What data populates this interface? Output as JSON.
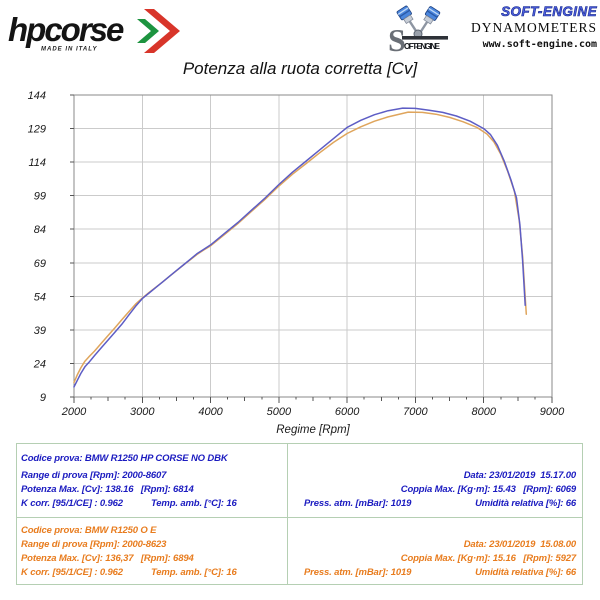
{
  "branding": {
    "hp_corse": {
      "name": "hpcorse",
      "tagline": "MADE IN ITALY"
    },
    "soft_engine": {
      "brand": "SOFT-ENGINE",
      "subtitle": "DYNAMOMETERS",
      "website": "www.soft-engine.com",
      "emblem_text": "OFT-ENGINE"
    }
  },
  "chart_data": {
    "type": "line",
    "title": "Potenza alla ruota corretta [Cv]",
    "xlabel": "Regime [Rpm]",
    "ylabel": "",
    "xlim": [
      2000,
      9000
    ],
    "ylim": [
      9,
      144
    ],
    "x_ticks": [
      2000,
      3000,
      4000,
      5000,
      6000,
      7000,
      8000,
      9000
    ],
    "y_ticks": [
      9,
      24,
      39,
      54,
      69,
      84,
      99,
      114,
      129,
      144
    ],
    "grid": true,
    "legend": false,
    "series": [
      {
        "name": "BMW R1250 HP CORSE NO DBK",
        "color": "#5d5dc5",
        "max_power_cv": 138.16,
        "max_power_rpm": 6814,
        "points": [
          [
            2000,
            13.5
          ],
          [
            2050,
            16.5
          ],
          [
            2100,
            19.5
          ],
          [
            2160,
            22.5
          ],
          [
            2220,
            24.5
          ],
          [
            2300,
            27.5
          ],
          [
            2400,
            31
          ],
          [
            2500,
            34.5
          ],
          [
            2600,
            38
          ],
          [
            2700,
            41.5
          ],
          [
            2800,
            45.5
          ],
          [
            2900,
            49.5
          ],
          [
            3000,
            53
          ],
          [
            3100,
            55.5
          ],
          [
            3200,
            58
          ],
          [
            3300,
            60.5
          ],
          [
            3400,
            63
          ],
          [
            3500,
            65.5
          ],
          [
            3600,
            68
          ],
          [
            3700,
            70.5
          ],
          [
            3800,
            73
          ],
          [
            3900,
            75
          ],
          [
            4000,
            77
          ],
          [
            4200,
            82
          ],
          [
            4400,
            87
          ],
          [
            4600,
            92.5
          ],
          [
            4800,
            98
          ],
          [
            5000,
            104
          ],
          [
            5200,
            109.5
          ],
          [
            5400,
            114.5
          ],
          [
            5600,
            119.5
          ],
          [
            5800,
            124.5
          ],
          [
            6000,
            129.5
          ],
          [
            6200,
            132.7
          ],
          [
            6400,
            135.2
          ],
          [
            6600,
            137
          ],
          [
            6814,
            138.16
          ],
          [
            7000,
            138
          ],
          [
            7200,
            137.2
          ],
          [
            7400,
            136.2
          ],
          [
            7600,
            134.6
          ],
          [
            7800,
            132.3
          ],
          [
            8000,
            129
          ],
          [
            8100,
            126.3
          ],
          [
            8200,
            121.5
          ],
          [
            8300,
            114.5
          ],
          [
            8400,
            106
          ],
          [
            8480,
            98
          ],
          [
            8530,
            86
          ],
          [
            8570,
            70
          ],
          [
            8607,
            50
          ]
        ]
      },
      {
        "name": "BMW R1250 O E",
        "color": "#dfa55c",
        "max_power_cv": 136.37,
        "max_power_rpm": 6894,
        "points": [
          [
            2000,
            15.5
          ],
          [
            2050,
            19
          ],
          [
            2100,
            22
          ],
          [
            2160,
            25
          ],
          [
            2220,
            27
          ],
          [
            2300,
            29.5
          ],
          [
            2400,
            33
          ],
          [
            2500,
            36.5
          ],
          [
            2600,
            40
          ],
          [
            2700,
            43.5
          ],
          [
            2800,
            47
          ],
          [
            2900,
            50.5
          ],
          [
            3000,
            53.2
          ],
          [
            3100,
            55.7
          ],
          [
            3200,
            58.1
          ],
          [
            3300,
            60.5
          ],
          [
            3400,
            63
          ],
          [
            3500,
            65.4
          ],
          [
            3600,
            67.9
          ],
          [
            3700,
            70.3
          ],
          [
            3800,
            72.7
          ],
          [
            3900,
            74.7
          ],
          [
            4000,
            76.6
          ],
          [
            4200,
            81.5
          ],
          [
            4400,
            86.5
          ],
          [
            4600,
            92
          ],
          [
            4800,
            97.4
          ],
          [
            5000,
            103.3
          ],
          [
            5200,
            108.6
          ],
          [
            5400,
            113.4
          ],
          [
            5600,
            118.2
          ],
          [
            5800,
            122.8
          ],
          [
            6000,
            126.8
          ],
          [
            6200,
            129.8
          ],
          [
            6400,
            132.3
          ],
          [
            6600,
            134.2
          ],
          [
            6894,
            136.37
          ],
          [
            7100,
            136.2
          ],
          [
            7300,
            135.4
          ],
          [
            7500,
            134
          ],
          [
            7700,
            132
          ],
          [
            7900,
            129.5
          ],
          [
            8050,
            126.5
          ],
          [
            8150,
            123
          ],
          [
            8250,
            117.5
          ],
          [
            8350,
            110
          ],
          [
            8450,
            101
          ],
          [
            8520,
            88
          ],
          [
            8570,
            72
          ],
          [
            8623,
            46
          ]
        ]
      }
    ]
  },
  "tables": [
    {
      "codice": "Codice prova: BMW R1250 HP CORSE NO DBK",
      "range": "Range di prova [Rpm]: 2000-8607",
      "potenza": "Potenza Max. [Cv]: 138.16   [Rpm]: 6814",
      "kcorr": "K corr. [95/1/CE] : 0.962",
      "temp": "Temp. amb. [°C]: 16",
      "data": "Data: 23/01/2019  15.17.00",
      "coppia": "Coppia Max. [Kg·m]: 15.43   [Rpm]: 6069",
      "press": "Press. atm. [mBar]: 1019",
      "umidita": "Umidità relativa [%]: 66"
    },
    {
      "codice": "Codice prova: BMW R1250 O E",
      "range": "Range di prova [Rpm]: 2000-8623",
      "potenza": "Potenza Max. [Cv]: 136,37   [Rpm]: 6894",
      "kcorr": "K corr. [95/1/CE] : 0.962",
      "temp": "Temp. amb. [°C]: 16",
      "data": "Data: 23/01/2019  15.08.00",
      "coppia": "Coppia Max. [Kg·m]: 15.16   [Rpm]: 5927",
      "press": "Press. atm. [mBar]: 1019",
      "umidita": "Umidità relativa [%]: 66"
    }
  ]
}
